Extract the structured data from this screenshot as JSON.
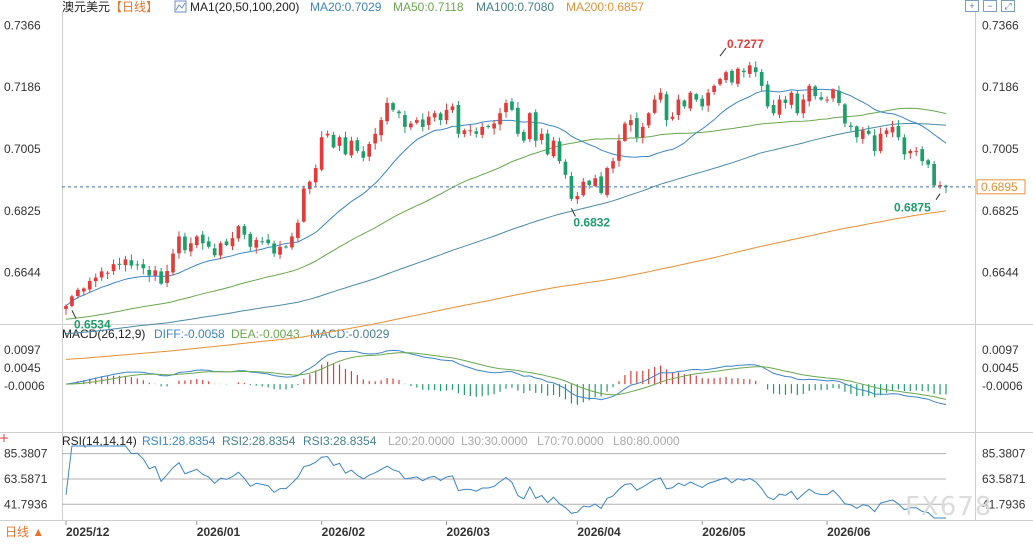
{
  "header": {
    "symbol": "澳元美元",
    "period": "【日线】",
    "ma_label": "MA1(20,50,100,200)",
    "ma_values": [
      {
        "label": "MA20:0.7029",
        "color": "#3d85c6"
      },
      {
        "label": "MA50:0.7118",
        "color": "#6aa84f"
      },
      {
        "label": "MA100:0.7080",
        "color": "#45818e"
      },
      {
        "label": "MA200:0.6857",
        "color": "#e69138"
      }
    ]
  },
  "macd_header": {
    "label": "MACD(26,12,9)",
    "diff": "DIFF:-0.0058",
    "dea": "DEA:-0.0043",
    "macd": "MACD:-0.0029"
  },
  "rsi_header": {
    "label": "RSI(14,14,14)",
    "rsi1": "RSI1:28.8354",
    "rsi2": "RSI2:28.8354",
    "rsi3": "RSI3:28.8354",
    "l20": "L20:20.0000",
    "l30": "L30:30.0000",
    "l70": "L70:70.0000",
    "l80": "L80:80.0000"
  },
  "footer": {
    "period_button": "日线 ▲"
  },
  "toolbar": {
    "icons": [
      "zoom-in-icon",
      "zoom-out-icon",
      "expand-icon"
    ]
  },
  "watermark": "FX678",
  "colors": {
    "up": "#e03c3c",
    "down": "#1e9e6a",
    "ma20": "#3d85c6",
    "ma50": "#6aa84f",
    "ma100": "#4a8aa8",
    "ma200": "#e69138",
    "current": "#e69138"
  },
  "chart_data": [
    {
      "type": "candlestick",
      "title": "澳元美元【日线】",
      "ylim": [
        0.65,
        0.74
      ],
      "y_ticks": [
        "0.7366",
        "0.7186",
        "0.7005",
        "0.6825",
        "0.6644"
      ],
      "y_tick_values": [
        0.7366,
        0.7186,
        0.7005,
        0.6825,
        0.6644
      ],
      "x_ticks": [
        "2025/12",
        "2026/01",
        "2026/02",
        "2026/03",
        "2026/04",
        "2026/05",
        "2026/06"
      ],
      "x_tick_index": [
        0,
        22,
        43,
        64,
        86,
        107,
        128
      ],
      "current_price": "0.6895",
      "current_price_value": 0.6895,
      "annotations": [
        {
          "text": "0.6534",
          "index": 1,
          "value": 0.6534
        },
        {
          "text": "0.7277",
          "index": 110,
          "value": 0.7277
        },
        {
          "text": "0.6832",
          "index": 85,
          "value": 0.6832
        },
        {
          "text": "0.6875",
          "index": 147,
          "value": 0.6875
        }
      ],
      "closes": [
        0.6547,
        0.6575,
        0.6594,
        0.6598,
        0.662,
        0.663,
        0.6648,
        0.6644,
        0.6669,
        0.6667,
        0.6683,
        0.6665,
        0.6667,
        0.6657,
        0.6636,
        0.6651,
        0.6612,
        0.6649,
        0.67,
        0.675,
        0.671,
        0.673,
        0.675,
        0.673,
        0.672,
        0.6695,
        0.673,
        0.6725,
        0.6745,
        0.678,
        0.6755,
        0.672,
        0.674,
        0.6735,
        0.673,
        0.67,
        0.672,
        0.672,
        0.675,
        0.679,
        0.689,
        0.691,
        0.695,
        0.704,
        0.705,
        0.701,
        0.704,
        0.699,
        0.703,
        0.7,
        0.698,
        0.702,
        0.705,
        0.709,
        0.714,
        0.712,
        0.711,
        0.707,
        0.708,
        0.709,
        0.707,
        0.71,
        0.711,
        0.709,
        0.712,
        0.713,
        0.705,
        0.706,
        0.706,
        0.705,
        0.707,
        0.707,
        0.708,
        0.711,
        0.714,
        0.712,
        0.705,
        0.703,
        0.711,
        0.703,
        0.705,
        0.699,
        0.703,
        0.697,
        0.693,
        0.686,
        0.6868,
        0.691,
        0.69,
        0.692,
        0.6877,
        0.695,
        0.697,
        0.703,
        0.708,
        0.709,
        0.704,
        0.707,
        0.711,
        0.715,
        0.717,
        0.709,
        0.71,
        0.715,
        0.713,
        0.717,
        0.715,
        0.713,
        0.717,
        0.719,
        0.721,
        0.723,
        0.72,
        0.724,
        0.723,
        0.725,
        0.723,
        0.719,
        0.713,
        0.711,
        0.715,
        0.714,
        0.717,
        0.711,
        0.715,
        0.719,
        0.716,
        0.715,
        0.715,
        0.718,
        0.714,
        0.708,
        0.707,
        0.704,
        0.706,
        0.705,
        0.7,
        0.705,
        0.706,
        0.707,
        0.704,
        0.699,
        0.7,
        0.7,
        0.697,
        0.696,
        0.6899,
        0.69,
        0.6895
      ],
      "ma_periods": [
        20,
        50,
        100,
        200
      ]
    },
    {
      "type": "macd",
      "ylim": [
        -0.013,
        0.0125
      ],
      "y_ticks": [
        "0.0097",
        "0.0045",
        "-0.0006"
      ],
      "y_tick_values": [
        0.0097,
        0.0045,
        -0.0006
      ],
      "diff": -0.0058,
      "dea": -0.0043,
      "macd": -0.0029
    },
    {
      "type": "rsi",
      "ylim": [
        0,
        100
      ],
      "y_ticks": [
        "85.3807",
        "63.5871",
        "41.7936"
      ],
      "y_tick_values": [
        85.3807,
        63.5871,
        41.7936
      ],
      "rsi1": 28.8354,
      "rsi2": 28.8354,
      "rsi3": 28.8354,
      "levels": [
        20,
        30,
        70,
        80
      ]
    }
  ]
}
